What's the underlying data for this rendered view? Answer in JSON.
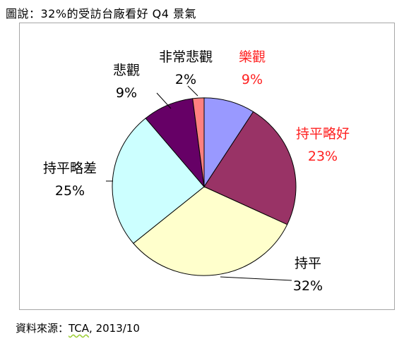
{
  "caption": "圖說：32%的受訪台廠看好 Q4 景氣",
  "source": {
    "label": "資料來源：",
    "org": "TCA",
    "rest": ", 2013/10"
  },
  "chart_data": {
    "type": "pie",
    "categories": [
      "樂觀",
      "持平略好",
      "持平",
      "持平略差",
      "悲觀",
      "非常悲觀"
    ],
    "values": [
      9,
      23,
      32,
      25,
      9,
      2
    ],
    "value_labels": [
      "9%",
      "23%",
      "32%",
      "25%",
      "9%",
      "2%"
    ],
    "colors": [
      "#9999ff",
      "#993366",
      "#ffffcc",
      "#ccffff",
      "#660066",
      "#ff8080"
    ],
    "label_colors": [
      "#ff2020",
      "#ff2020",
      "#000000",
      "#000000",
      "#000000",
      "#000000"
    ]
  }
}
